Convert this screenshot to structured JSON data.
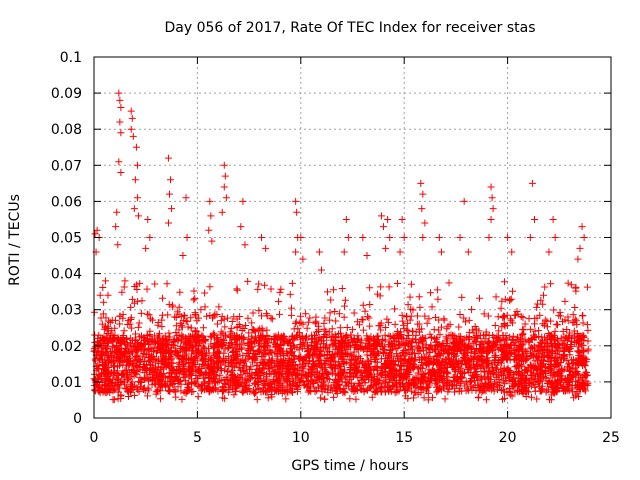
{
  "chart_data": {
    "type": "scatter",
    "title": "Day 056 of 2017, Rate Of TEC Index for receiver stas",
    "xlabel": "GPS time / hours",
    "ylabel": "ROTI / TECUs",
    "xlim": [
      0,
      25
    ],
    "ylim": [
      0,
      0.1
    ],
    "x_ticks": [
      0,
      5,
      10,
      15,
      20,
      25
    ],
    "x_tick_labels": [
      "0",
      "5",
      "10",
      "15",
      "20",
      "25"
    ],
    "y_ticks": [
      0,
      0.01,
      0.02,
      0.03,
      0.04,
      0.05,
      0.06,
      0.07,
      0.08,
      0.09,
      0.1
    ],
    "y_tick_labels": [
      "0",
      "0.01",
      "0.02",
      "0.03",
      "0.04",
      "0.05",
      "0.06",
      "0.07",
      "0.08",
      "0.09",
      "0.1"
    ],
    "grid": true,
    "marker": "+",
    "marker_color": "#ff0000",
    "series": [
      {
        "name": "ROTI",
        "points": [
          [
            0.05,
            0.051
          ],
          [
            0.1,
            0.046
          ],
          [
            0.15,
            0.052
          ],
          [
            0.25,
            0.05
          ],
          [
            0.3,
            0.034
          ],
          [
            1.2,
            0.09
          ],
          [
            1.25,
            0.088
          ],
          [
            1.3,
            0.086
          ],
          [
            1.25,
            0.082
          ],
          [
            1.3,
            0.079
          ],
          [
            1.2,
            0.071
          ],
          [
            1.3,
            0.068
          ],
          [
            1.8,
            0.085
          ],
          [
            1.85,
            0.083
          ],
          [
            1.8,
            0.08
          ],
          [
            1.9,
            0.078
          ],
          [
            2.05,
            0.075
          ],
          [
            2.1,
            0.07
          ],
          [
            2.0,
            0.066
          ],
          [
            2.1,
            0.061
          ],
          [
            1.95,
            0.058
          ],
          [
            2.15,
            0.056
          ],
          [
            1.1,
            0.057
          ],
          [
            1.05,
            0.053
          ],
          [
            1.15,
            0.048
          ],
          [
            2.6,
            0.055
          ],
          [
            2.7,
            0.05
          ],
          [
            2.5,
            0.047
          ],
          [
            3.6,
            0.072
          ],
          [
            3.7,
            0.066
          ],
          [
            3.65,
            0.062
          ],
          [
            3.75,
            0.058
          ],
          [
            3.6,
            0.054
          ],
          [
            4.45,
            0.061
          ],
          [
            4.5,
            0.05
          ],
          [
            4.3,
            0.045
          ],
          [
            5.6,
            0.06
          ],
          [
            5.65,
            0.056
          ],
          [
            5.55,
            0.052
          ],
          [
            5.7,
            0.049
          ],
          [
            6.3,
            0.07
          ],
          [
            6.35,
            0.067
          ],
          [
            6.3,
            0.064
          ],
          [
            6.4,
            0.061
          ],
          [
            6.2,
            0.057
          ],
          [
            7.2,
            0.06
          ],
          [
            7.1,
            0.053
          ],
          [
            7.3,
            0.048
          ],
          [
            8.1,
            0.05
          ],
          [
            8.3,
            0.047
          ],
          [
            9.75,
            0.06
          ],
          [
            9.8,
            0.057
          ],
          [
            9.85,
            0.05
          ],
          [
            9.75,
            0.046
          ],
          [
            10.0,
            0.05
          ],
          [
            10.1,
            0.044
          ],
          [
            10.9,
            0.046
          ],
          [
            11.0,
            0.041
          ],
          [
            12.2,
            0.055
          ],
          [
            12.3,
            0.05
          ],
          [
            12.1,
            0.046
          ],
          [
            13.0,
            0.05
          ],
          [
            13.2,
            0.045
          ],
          [
            13.9,
            0.056
          ],
          [
            14.0,
            0.053
          ],
          [
            14.2,
            0.055
          ],
          [
            14.3,
            0.05
          ],
          [
            14.1,
            0.047
          ],
          [
            14.9,
            0.055
          ],
          [
            15.0,
            0.05
          ],
          [
            14.8,
            0.046
          ],
          [
            15.8,
            0.065
          ],
          [
            15.9,
            0.062
          ],
          [
            15.85,
            0.058
          ],
          [
            16.0,
            0.054
          ],
          [
            15.9,
            0.05
          ],
          [
            16.7,
            0.05
          ],
          [
            16.8,
            0.046
          ],
          [
            17.9,
            0.06
          ],
          [
            17.7,
            0.05
          ],
          [
            18.1,
            0.046
          ],
          [
            19.2,
            0.064
          ],
          [
            19.25,
            0.061
          ],
          [
            19.3,
            0.058
          ],
          [
            19.2,
            0.055
          ],
          [
            19.1,
            0.05
          ],
          [
            20.0,
            0.05
          ],
          [
            20.2,
            0.046
          ],
          [
            21.2,
            0.065
          ],
          [
            21.3,
            0.055
          ],
          [
            21.1,
            0.05
          ],
          [
            22.2,
            0.055
          ],
          [
            22.3,
            0.05
          ],
          [
            22.0,
            0.046
          ],
          [
            23.6,
            0.053
          ],
          [
            23.7,
            0.05
          ],
          [
            23.5,
            0.047
          ],
          [
            23.4,
            0.044
          ]
        ]
      }
    ],
    "dense_band": {
      "x_range": [
        0,
        23.9
      ],
      "y_range": [
        0.004,
        0.032
      ],
      "note": "densely packed ROTI samples, most concentrated between 0.008 and 0.022 TECUs"
    }
  }
}
